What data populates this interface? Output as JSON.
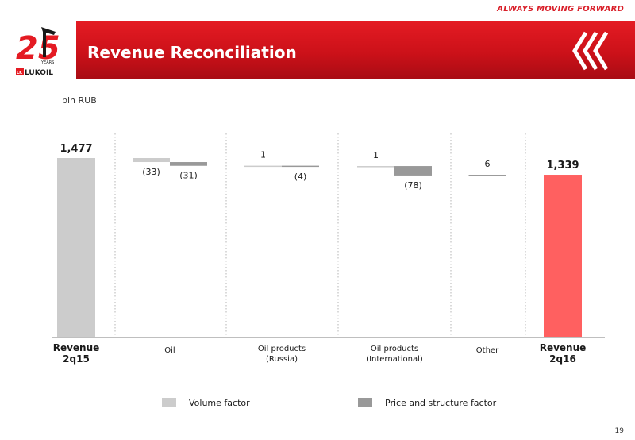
{
  "header": {
    "tagline": "ALWAYS MOVING FORWARD",
    "title": "Revenue Reconciliation",
    "logo": {
      "years_number": "25",
      "years_label": "YEARS",
      "brand": "LUKOIL",
      "brand_mark": "LK"
    }
  },
  "unit_label": "bln RUB",
  "page_number": "19",
  "colors": {
    "banner_red": "#d4151d",
    "volume": "#cccccc",
    "price": "#999999",
    "start_total": "#cccccc",
    "end_total": "#ff6060"
  },
  "chart_data": {
    "type": "bar",
    "subtype": "waterfall",
    "categories": [
      "Revenue\n2q15",
      "Oil",
      "Oil products\n(Russia)",
      "Oil products\n(International)",
      "Other",
      "Revenue\n2q16"
    ],
    "start_total": {
      "category": "Revenue\n2q15",
      "value": 1477,
      "label": "1,477"
    },
    "end_total": {
      "category": "Revenue\n2q16",
      "value": 1339,
      "label": "1,339"
    },
    "steps": [
      {
        "category": "Oil",
        "series": "Volume factor",
        "value": -33,
        "label": "(33)"
      },
      {
        "category": "Oil",
        "series": "Price and structure factor",
        "value": -31,
        "label": "(31)"
      },
      {
        "category": "Oil products\n(Russia)",
        "series": "Volume factor",
        "value": 1,
        "label": "1"
      },
      {
        "category": "Oil products\n(Russia)",
        "series": "Price and structure factor",
        "value": -4,
        "label": "(4)"
      },
      {
        "category": "Oil products\n(International)",
        "series": "Volume factor",
        "value": 1,
        "label": "1"
      },
      {
        "category": "Oil products\n(International)",
        "series": "Price and structure factor",
        "value": -78,
        "label": "(78)"
      },
      {
        "category": "Other",
        "series": "Price and structure factor",
        "value": 6,
        "label": "6"
      }
    ],
    "legend": [
      {
        "name": "Volume factor",
        "color": "#cccccc"
      },
      {
        "name": "Price and structure factor",
        "color": "#999999"
      }
    ],
    "legend_position": "bottom",
    "ylim": [
      0,
      1500
    ],
    "grid": false,
    "separators": "dotted vertical lines between categories"
  }
}
